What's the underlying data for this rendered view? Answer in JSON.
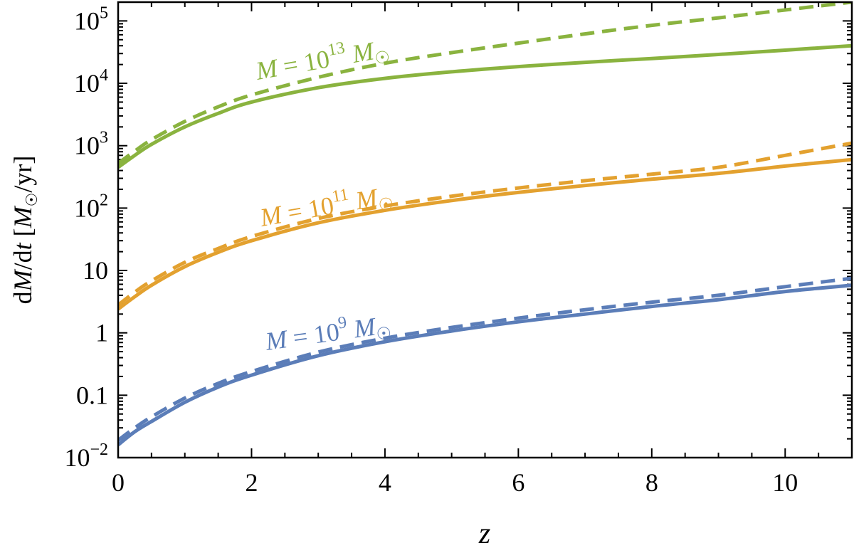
{
  "chart_data": {
    "type": "line",
    "title": "",
    "xlabel": "z",
    "ylabel_parts": {
      "prefix": "d",
      "M": "M",
      "mid": "/d",
      "t": "t",
      "bracket_open": " [",
      "sun": "☉",
      "unit": "/yr]"
    },
    "xlim": [
      0,
      11
    ],
    "ylim": [
      0.01,
      200000
    ],
    "yscale": "log",
    "x_ticks": [
      {
        "value": 0,
        "label": "0"
      },
      {
        "value": 2,
        "label": "2"
      },
      {
        "value": 4,
        "label": "4"
      },
      {
        "value": 6,
        "label": "6"
      },
      {
        "value": 8,
        "label": "8"
      },
      {
        "value": 10,
        "label": "10"
      }
    ],
    "y_ticks": [
      {
        "value": 0.01,
        "base": "10",
        "exp": "−2"
      },
      {
        "value": 0.1,
        "base": "0.1",
        "exp": ""
      },
      {
        "value": 1,
        "base": "1",
        "exp": ""
      },
      {
        "value": 10,
        "base": "10",
        "exp": ""
      },
      {
        "value": 100,
        "base": "10",
        "exp": "2"
      },
      {
        "value": 1000,
        "base": "10",
        "exp": "3"
      },
      {
        "value": 10000,
        "base": "10",
        "exp": "4"
      },
      {
        "value": 100000,
        "base": "10",
        "exp": "5"
      }
    ],
    "x": [
      0,
      0.25,
      0.5,
      1,
      1.5,
      2,
      3,
      4,
      5,
      6,
      7,
      8,
      9,
      10,
      11
    ],
    "series": [
      {
        "key": "m9",
        "label": {
          "M": "M",
          "eq": " = 10",
          "exp": "9",
          "M2": " M",
          "sun": "☉"
        },
        "color": "#5b7db8",
        "solid": [
          0.016,
          0.026,
          0.038,
          0.077,
          0.135,
          0.21,
          0.43,
          0.72,
          1.07,
          1.5,
          2.0,
          2.65,
          3.4,
          4.6,
          5.8
        ],
        "dashed": [
          0.019,
          0.03,
          0.045,
          0.09,
          0.155,
          0.24,
          0.49,
          0.82,
          1.22,
          1.72,
          2.35,
          3.1,
          4.0,
          5.5,
          7.5
        ]
      },
      {
        "key": "m11",
        "label": {
          "M": "M",
          "eq": " = 10",
          "exp": "11",
          "M2": " M",
          "sun": "☉"
        },
        "color": "#e3a12f",
        "solid": [
          2.4,
          3.8,
          5.8,
          11.5,
          19.5,
          30,
          58,
          92,
          132,
          178,
          230,
          290,
          360,
          470,
          600
        ],
        "dashed": [
          2.8,
          4.5,
          6.8,
          13.5,
          22.5,
          35,
          68,
          108,
          155,
          210,
          275,
          350,
          450,
          700,
          1100
        ]
      },
      {
        "key": "m13",
        "label": {
          "M": "M",
          "eq": " = 10",
          "exp": "13",
          "M2": " M",
          "sun": "☉"
        },
        "color": "#8ab33f",
        "solid": [
          450,
          700,
          1050,
          2000,
          3300,
          5000,
          8500,
          12000,
          15300,
          18500,
          21700,
          25000,
          29000,
          34000,
          40000
        ],
        "dashed": [
          520,
          820,
          1250,
          2450,
          4200,
          6500,
          12500,
          21000,
          31000,
          44000,
          62000,
          85000,
          112000,
          150000,
          200000
        ]
      }
    ]
  }
}
